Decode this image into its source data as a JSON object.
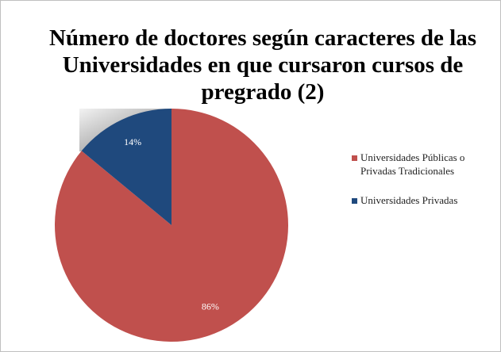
{
  "chart_data": {
    "type": "pie",
    "title": "Número de doctores según caracteres de las Universidades en que cursaron cursos de pregrado (2)",
    "categories": [
      "Universidades Públicas o Privadas Tradicionales",
      "Universidades Privadas"
    ],
    "values": [
      86,
      14
    ],
    "value_labels": [
      "86%",
      "14%"
    ],
    "colors": [
      "#c0504d",
      "#1f497d"
    ],
    "legend": "right"
  }
}
